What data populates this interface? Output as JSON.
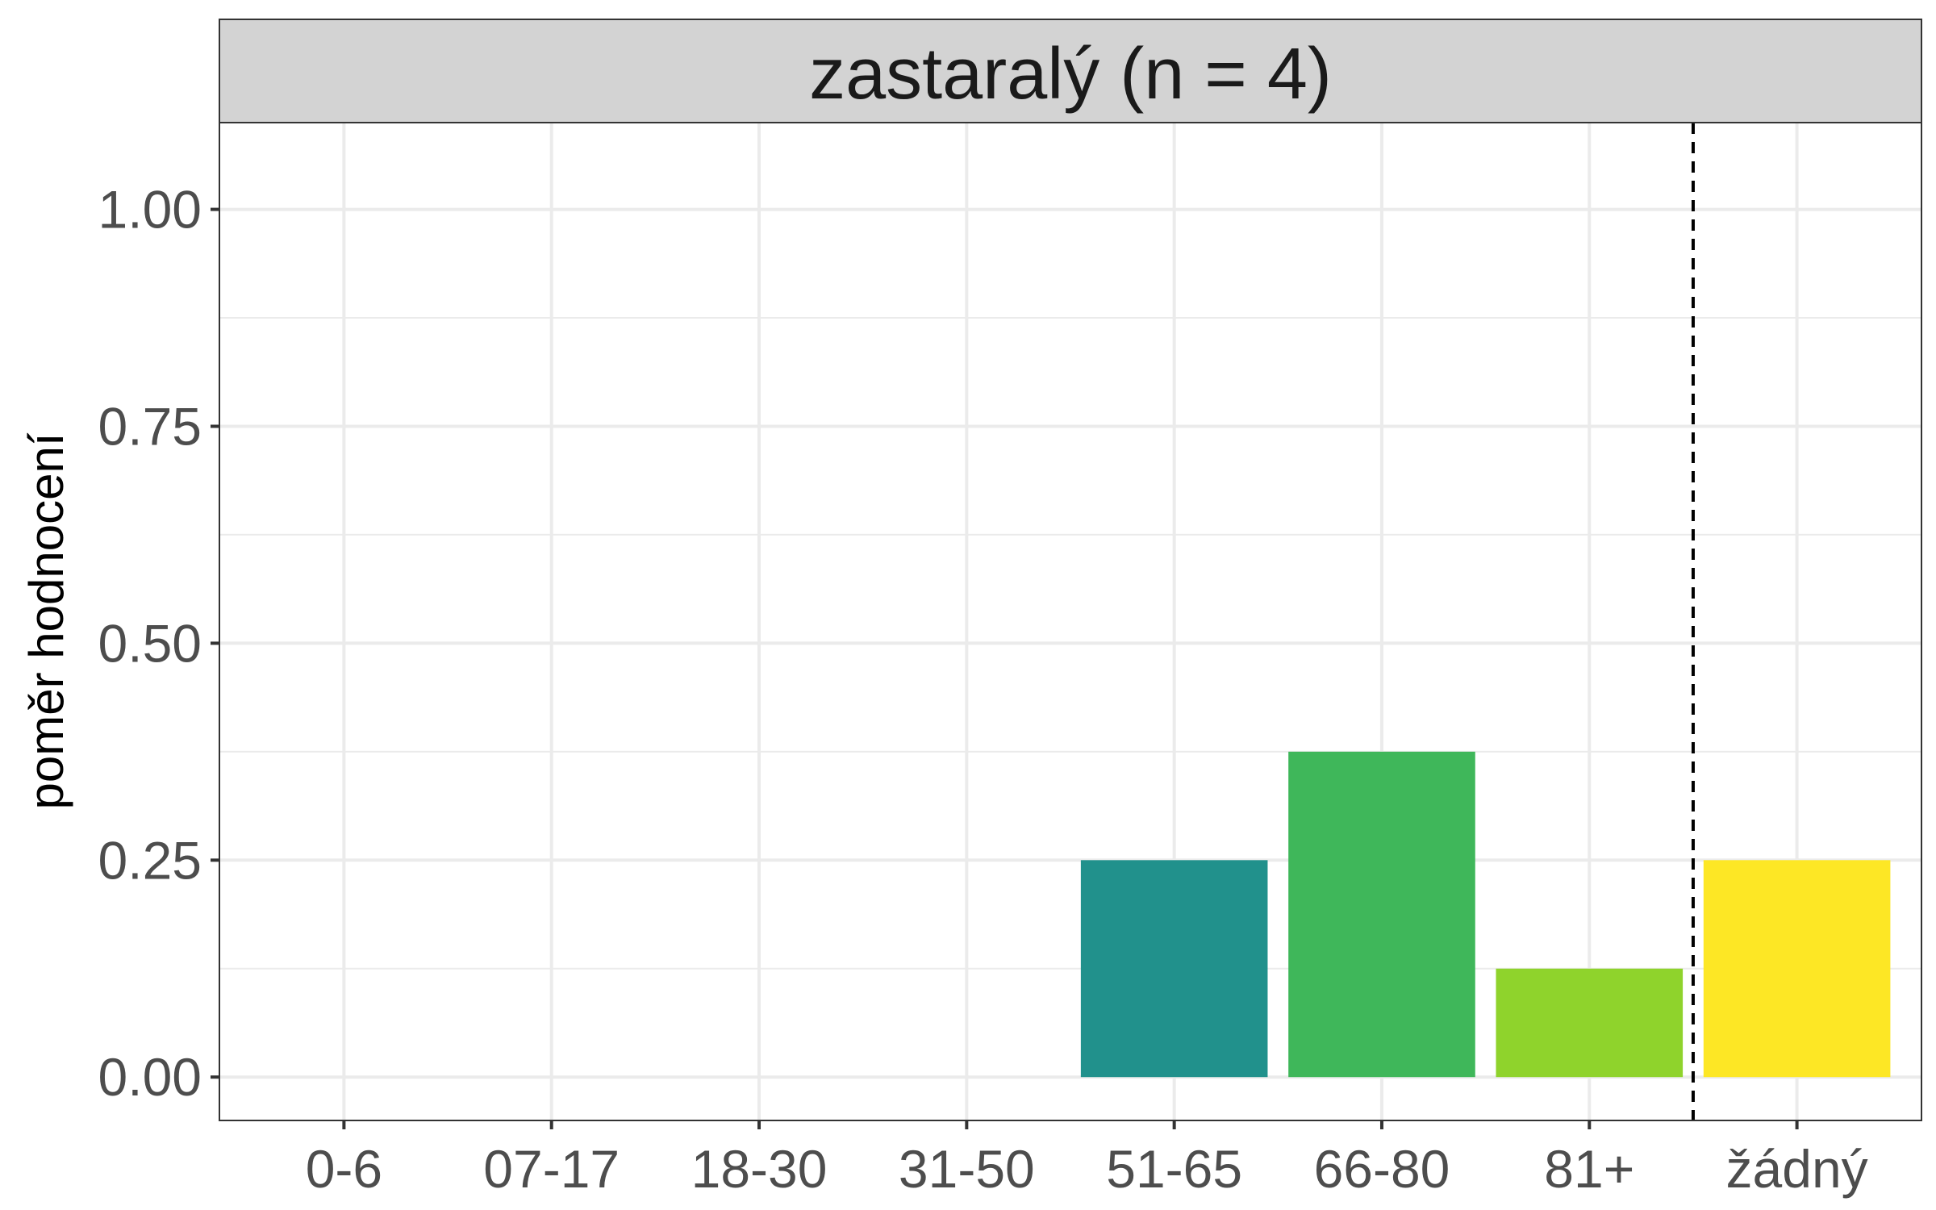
{
  "chart_data": {
    "type": "bar",
    "panel_title": "zastaralý (n = 4)",
    "categories": [
      "0-6",
      "07-17",
      "18-30",
      "31-50",
      "51-65",
      "66-80",
      "81+",
      "žádný"
    ],
    "values": [
      0,
      0,
      0,
      0,
      0.25,
      0.375,
      0.125,
      0.25
    ],
    "colors": [
      "#440154",
      "#46327e",
      "#365c8d",
      "#277f8e",
      "#21918c",
      "#3fb75a",
      "#8fd32c",
      "#fde725"
    ],
    "ylabel": "poměr hodnocení",
    "xlabel": "",
    "yticks": [
      "0.00",
      "0.25",
      "0.50",
      "0.75",
      "1.00"
    ],
    "ytick_values": [
      0,
      0.25,
      0.5,
      0.75,
      1.0
    ],
    "ylim": [
      -0.05,
      1.1
    ],
    "grid": true,
    "reference_line": {
      "style": "dashed",
      "between": [
        "81+",
        "žádný"
      ]
    }
  }
}
